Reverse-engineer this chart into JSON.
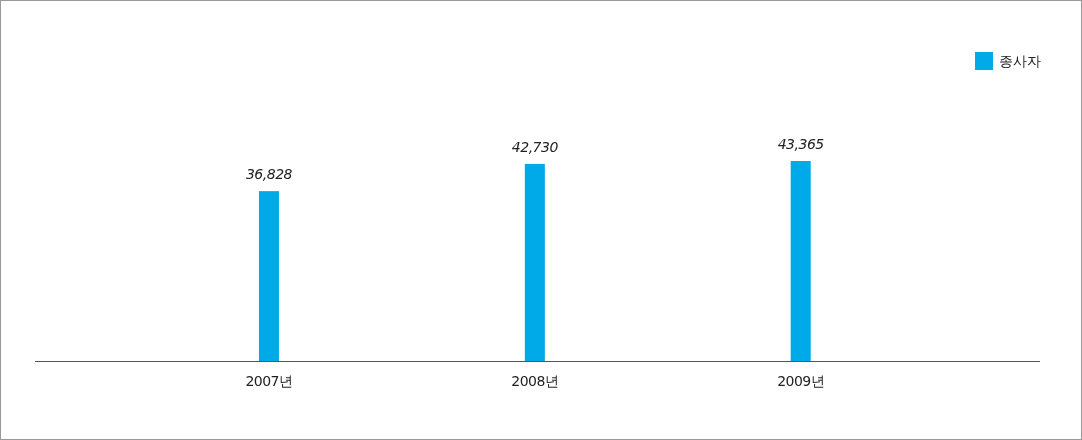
{
  "chart_data": {
    "type": "bar",
    "categories": [
      "2007년",
      "2008년",
      "2009년"
    ],
    "series": [
      {
        "name": "종사자",
        "color": "#00a9e8",
        "values": [
          36828,
          42730,
          43365
        ],
        "value_labels": [
          "36,828",
          "42,730",
          "43,365"
        ]
      }
    ],
    "legend": "top right"
  }
}
